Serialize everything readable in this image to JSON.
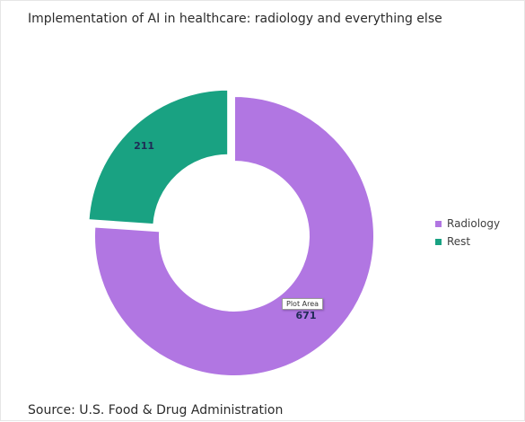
{
  "chart_data": {
    "type": "pie",
    "title": "Implementation of AI in healthcare: radiology and everything else",
    "source": "Source: U.S. Food & Drug Administration",
    "categories": [
      "Radiology",
      "Rest"
    ],
    "values": [
      671,
      211
    ],
    "colors": [
      "#b176e2",
      "#19a282"
    ],
    "legend_position": "right",
    "data_label_color": "#1f2a55",
    "donut": true,
    "exploded_slice": "Rest"
  },
  "tooltip": {
    "text": "Plot Area"
  }
}
